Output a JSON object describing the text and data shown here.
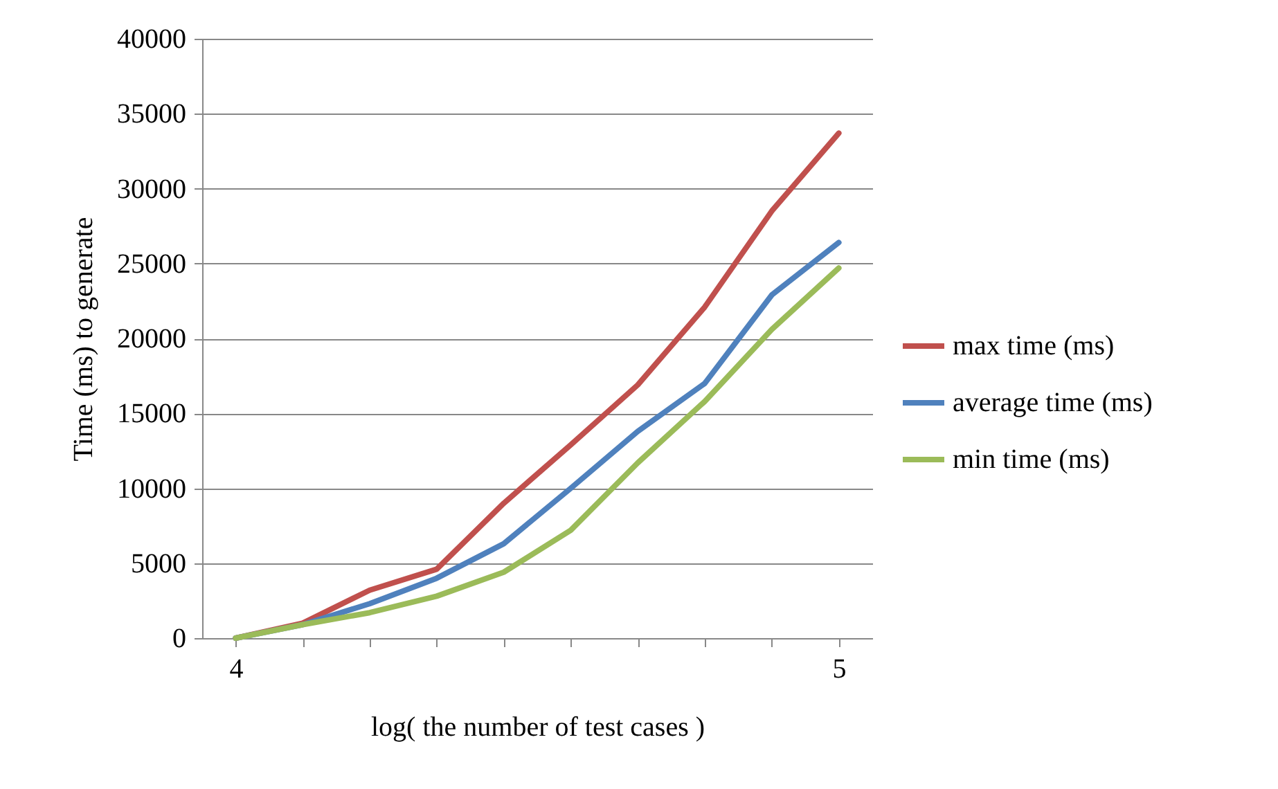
{
  "chart_data": {
    "type": "line",
    "xlabel": "log( the number of test cases )",
    "ylabel": "Time (ms) to generate",
    "categories": [
      "4",
      null,
      null,
      null,
      null,
      null,
      null,
      null,
      null,
      "5"
    ],
    "series": [
      {
        "name": "max time (ms)",
        "color": "#c0504d",
        "values": [
          0,
          1000,
          3200,
          4600,
          9000,
          12900,
          16900,
          22100,
          28500,
          33700
        ]
      },
      {
        "name": "average time (ms)",
        "color": "#4f81bd",
        "values": [
          0,
          900,
          2300,
          4000,
          6300,
          10000,
          13800,
          17000,
          22900,
          26400
        ]
      },
      {
        "name": "min time (ms)",
        "color": "#9bbb59",
        "values": [
          0,
          900,
          1700,
          2800,
          4400,
          7200,
          11700,
          15800,
          20600,
          24700
        ]
      }
    ],
    "ylim": [
      0,
      40000
    ],
    "yticks": [
      0,
      5000,
      10000,
      15000,
      20000,
      25000,
      30000,
      35000,
      40000
    ],
    "grid": "y",
    "legend": "right",
    "marker": "none",
    "line_style": "solid"
  }
}
